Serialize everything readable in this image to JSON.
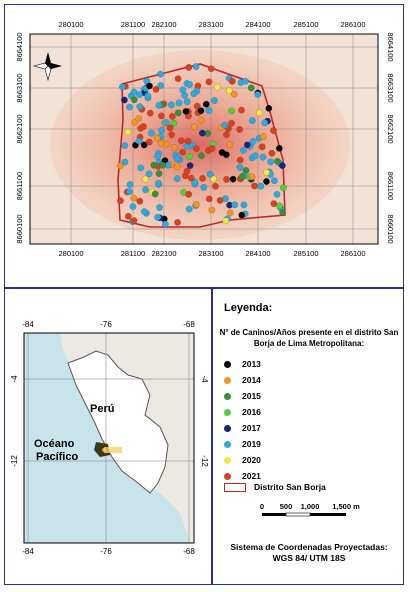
{
  "top_map": {
    "x_ticks": [
      "280100",
      "281100",
      "282100",
      "283100",
      "284100",
      "285100",
      "286100"
    ],
    "y_ticks": [
      "8664100",
      "8663100",
      "8662100",
      "8661100",
      "8660100"
    ],
    "districts_colors": {
      "boundary": "#c0272d",
      "heat": "#e7a78f"
    }
  },
  "inset_map": {
    "x_ticks": [
      "-84",
      "-76",
      "-68"
    ],
    "y_ticks": [
      "-4",
      "-12"
    ],
    "label_peru": "Perú",
    "label_ocean_line1": "Océano",
    "label_ocean_line2": "Pacífico"
  },
  "legend": {
    "title": "Leyenda:",
    "subtitle": "N° de Caninos/Años presente en el distrito San Borja de  Lima Metropolitana:",
    "years": [
      {
        "label": "2013",
        "color": "#000000"
      },
      {
        "label": "2014",
        "color": "#f7941d"
      },
      {
        "label": "2015",
        "color": "#3a8f3a"
      },
      {
        "label": "2016",
        "color": "#4cd137"
      },
      {
        "label": "2017",
        "color": "#1a237e"
      },
      {
        "label": "2019",
        "color": "#29abe2"
      },
      {
        "label": "2020",
        "color": "#f4e842"
      },
      {
        "label": "2021",
        "color": "#d9411e"
      }
    ],
    "boundary_label": "Distrito San Borja",
    "scale_labels": [
      "0",
      "500",
      "1,000",
      "1,500 m"
    ],
    "projection_line1": "Sistema de Coordenadas Proyectadas:",
    "projection_line2": "WGS 84/ UTM 18S"
  }
}
